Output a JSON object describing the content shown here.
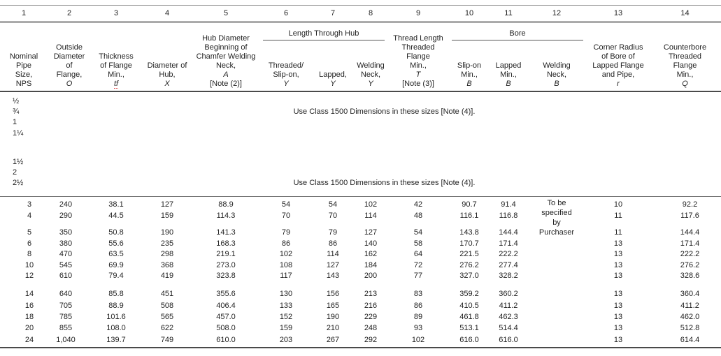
{
  "table": {
    "columns": [
      {
        "num": "1",
        "lines": [
          "Nominal",
          "Pipe",
          "Size,"
        ],
        "symbol": "NPS",
        "italic": false
      },
      {
        "num": "2",
        "lines": [
          "Outside",
          "Diameter",
          "of",
          "Flange,"
        ],
        "symbol": "O",
        "italic": true
      },
      {
        "num": "3",
        "lines": [
          "Thickness",
          "of Flange",
          "Min.,"
        ],
        "symbol": "tf",
        "italic": true,
        "squiggle": true
      },
      {
        "num": "4",
        "lines": [
          "Diameter of",
          "Hub,"
        ],
        "symbol": "X",
        "italic": true
      },
      {
        "num": "5",
        "lines": [
          "Hub Diameter",
          "Beginning of",
          "Chamfer Welding",
          "Neck,"
        ],
        "symbol": "A",
        "italic": true,
        "note": "[Note (2)]"
      },
      {
        "num": "6",
        "lines": [
          "Threaded/",
          "Slip-on,"
        ],
        "symbol": "Y",
        "italic": true
      },
      {
        "num": "7",
        "lines": [
          "Lapped,"
        ],
        "symbol": "Y",
        "italic": true
      },
      {
        "num": "8",
        "lines": [
          "Welding",
          "Neck,"
        ],
        "symbol": "Y",
        "italic": true
      },
      {
        "num": "9",
        "lines": [
          "Thread Length",
          "Threaded",
          "Flange",
          "Min.,"
        ],
        "symbol": "T",
        "italic": true,
        "note": "[Note (3)]"
      },
      {
        "num": "10",
        "lines": [
          "Slip-on",
          "Min.,"
        ],
        "symbol": "B",
        "italic": true
      },
      {
        "num": "11",
        "lines": [
          "Lapped",
          "Min.,"
        ],
        "symbol": "B",
        "italic": true
      },
      {
        "num": "12",
        "lines": [
          "Welding",
          "Neck,"
        ],
        "symbol": "B",
        "italic": true
      },
      {
        "num": "13",
        "lines": [
          "Corner Radius",
          "of Bore of",
          "Lapped Flange",
          "and Pipe,"
        ],
        "symbol": "r",
        "italic": true
      },
      {
        "num": "14",
        "lines": [
          "Counterbore",
          "Threaded",
          "Flange",
          "Min.,"
        ],
        "symbol": "Q",
        "italic": true
      }
    ],
    "spanners": [
      {
        "label": "Length Through Hub",
        "start": 6,
        "end": 8
      },
      {
        "label": "Bore",
        "start": 10,
        "end": 12
      }
    ],
    "class_note_sections": [
      {
        "sizes": [
          "½",
          "¾",
          "1",
          "1¼"
        ],
        "note": "Use Class 1500 Dimensions in these sizes [Note (4)].",
        "note_line": 2
      },
      {
        "sizes": [
          "1½",
          "2",
          "2½"
        ],
        "note": "Use Class 1500 Dimensions in these sizes [Note (4)].",
        "note_line": 3
      }
    ],
    "row_groups": [
      [
        [
          "3",
          "240",
          "38.1",
          "127",
          "88.9",
          "54",
          "54",
          "102",
          "42",
          "90.7",
          "91.4",
          "",
          "10",
          "92.2"
        ],
        [
          "4",
          "290",
          "44.5",
          "159",
          "114.3",
          "70",
          "70",
          "114",
          "48",
          "116.1",
          "116.8",
          "",
          "11",
          "117.6"
        ]
      ],
      [
        [
          "5",
          "350",
          "50.8",
          "190",
          "141.3",
          "79",
          "79",
          "127",
          "54",
          "143.8",
          "144.4",
          "",
          "11",
          "144.4"
        ],
        [
          "6",
          "380",
          "55.6",
          "235",
          "168.3",
          "86",
          "86",
          "140",
          "58",
          "170.7",
          "171.4",
          "",
          "13",
          "171.4"
        ],
        [
          "8",
          "470",
          "63.5",
          "298",
          "219.1",
          "102",
          "114",
          "162",
          "64",
          "221.5",
          "222.2",
          "",
          "13",
          "222.2"
        ],
        [
          "10",
          "545",
          "69.9",
          "368",
          "273.0",
          "108",
          "127",
          "184",
          "72",
          "276.2",
          "277.4",
          "",
          "13",
          "276.2"
        ],
        [
          "12",
          "610",
          "79.4",
          "419",
          "323.8",
          "117",
          "143",
          "200",
          "77",
          "327.0",
          "328.2",
          "",
          "13",
          "328.6"
        ]
      ],
      [
        [
          "14",
          "640",
          "85.8",
          "451",
          "355.6",
          "130",
          "156",
          "213",
          "83",
          "359.2",
          "360.2",
          "",
          "13",
          "360.4"
        ],
        [
          "16",
          "705",
          "88.9",
          "508",
          "406.4",
          "133",
          "165",
          "216",
          "86",
          "410.5",
          "411.2",
          "",
          "13",
          "411.2"
        ],
        [
          "18",
          "785",
          "101.6",
          "565",
          "457.0",
          "152",
          "190",
          "229",
          "89",
          "461.8",
          "462.3",
          "",
          "13",
          "462.0"
        ],
        [
          "20",
          "855",
          "108.0",
          "622",
          "508.0",
          "159",
          "210",
          "248",
          "93",
          "513.1",
          "514.4",
          "",
          "13",
          "512.8"
        ],
        [
          "24",
          "1,040",
          "139.7",
          "749",
          "610.0",
          "203",
          "267",
          "292",
          "102",
          "616.0",
          "616.0",
          "",
          "13",
          "614.4"
        ]
      ]
    ],
    "purchaser_note_lines": [
      "To be",
      "specified",
      "by",
      "Purchaser"
    ]
  }
}
